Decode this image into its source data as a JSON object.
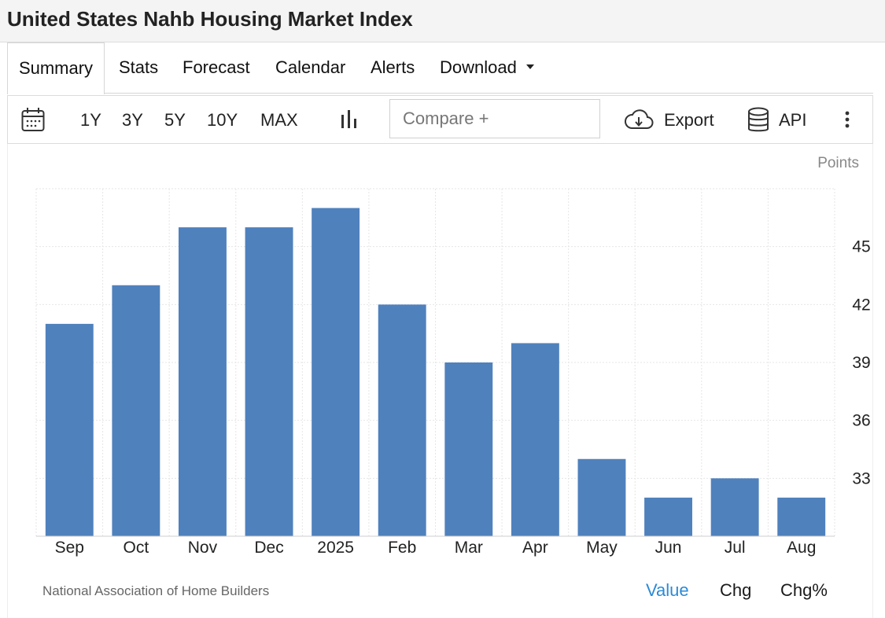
{
  "page": {
    "title": "United States Nahb Housing Market Index"
  },
  "tabs": [
    {
      "label": "Summary",
      "active": true
    },
    {
      "label": "Stats"
    },
    {
      "label": "Forecast"
    },
    {
      "label": "Calendar"
    },
    {
      "label": "Alerts"
    },
    {
      "label": "Download"
    }
  ],
  "toolbar": {
    "calendar_icon": "calendar-icon",
    "ranges": [
      "1Y",
      "3Y",
      "5Y",
      "10Y",
      "MAX"
    ],
    "chart_type_icon": "bar-chart-icon",
    "compare_placeholder": "Compare +",
    "export_label": "Export",
    "export_icon": "cloud-download-icon",
    "api_label": "API",
    "api_icon": "database-icon",
    "more_icon": "vertical-dots-icon"
  },
  "chart_data": {
    "type": "bar",
    "unit_label": "Points",
    "categories": [
      "Sep",
      "Oct",
      "Nov",
      "Dec",
      "2025",
      "Feb",
      "Mar",
      "Apr",
      "May",
      "Jun",
      "Jul",
      "Aug"
    ],
    "values": [
      41,
      43,
      46,
      46,
      47,
      42,
      39,
      40,
      34,
      32,
      33,
      32
    ],
    "ylim": [
      30,
      48
    ],
    "yticks": [
      33,
      36,
      39,
      42,
      45
    ],
    "grid": true,
    "bar_color": "#4f81bd",
    "source": "National Association of Home Builders"
  },
  "modes": [
    {
      "label": "Value",
      "active": true,
      "color": "#2b8ad6"
    },
    {
      "label": "Chg"
    },
    {
      "label": "Chg%"
    }
  ]
}
